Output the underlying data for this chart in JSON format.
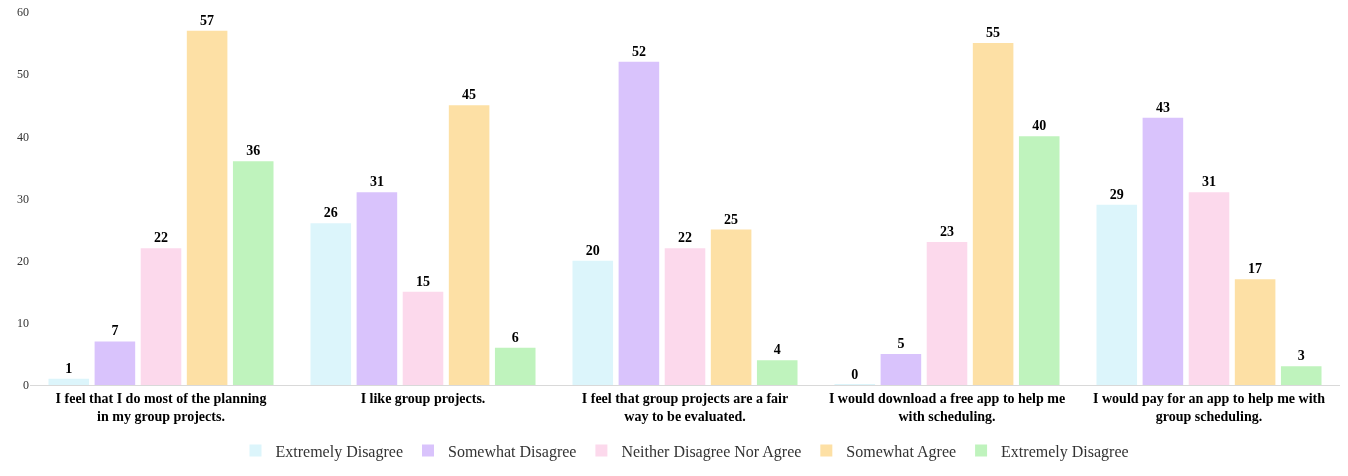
{
  "chart_data": {
    "type": "bar",
    "categories": [
      "I feel that I do most of the planning in my group projects.",
      "I like group projects.",
      "I feel that group projects are a fair way to be evaluated.",
      "I would download a free app to help me with scheduling.",
      "I would pay for an app to help me with group scheduling."
    ],
    "series": [
      {
        "name": "Extremely Disagree",
        "color": "#dcf5fb",
        "values": [
          1,
          26,
          20,
          0,
          29
        ]
      },
      {
        "name": "Somewhat Disagree",
        "color": "#d9c3fc",
        "values": [
          7,
          31,
          52,
          5,
          43
        ]
      },
      {
        "name": "Neither Disagree Nor Agree",
        "color": "#fcd9ec",
        "values": [
          22,
          15,
          22,
          23,
          31
        ]
      },
      {
        "name": "Somewhat Agree",
        "color": "#fde0a5",
        "values": [
          57,
          45,
          25,
          55,
          17
        ]
      },
      {
        "name": "Extremely Disagree",
        "color": "#bff3bd",
        "values": [
          36,
          6,
          4,
          40,
          3
        ]
      }
    ],
    "ylim": [
      0,
      60
    ],
    "yticks": [
      0,
      10,
      20,
      30,
      40,
      50,
      60
    ],
    "grid": false,
    "legend": "bottom",
    "data_labels": true
  }
}
